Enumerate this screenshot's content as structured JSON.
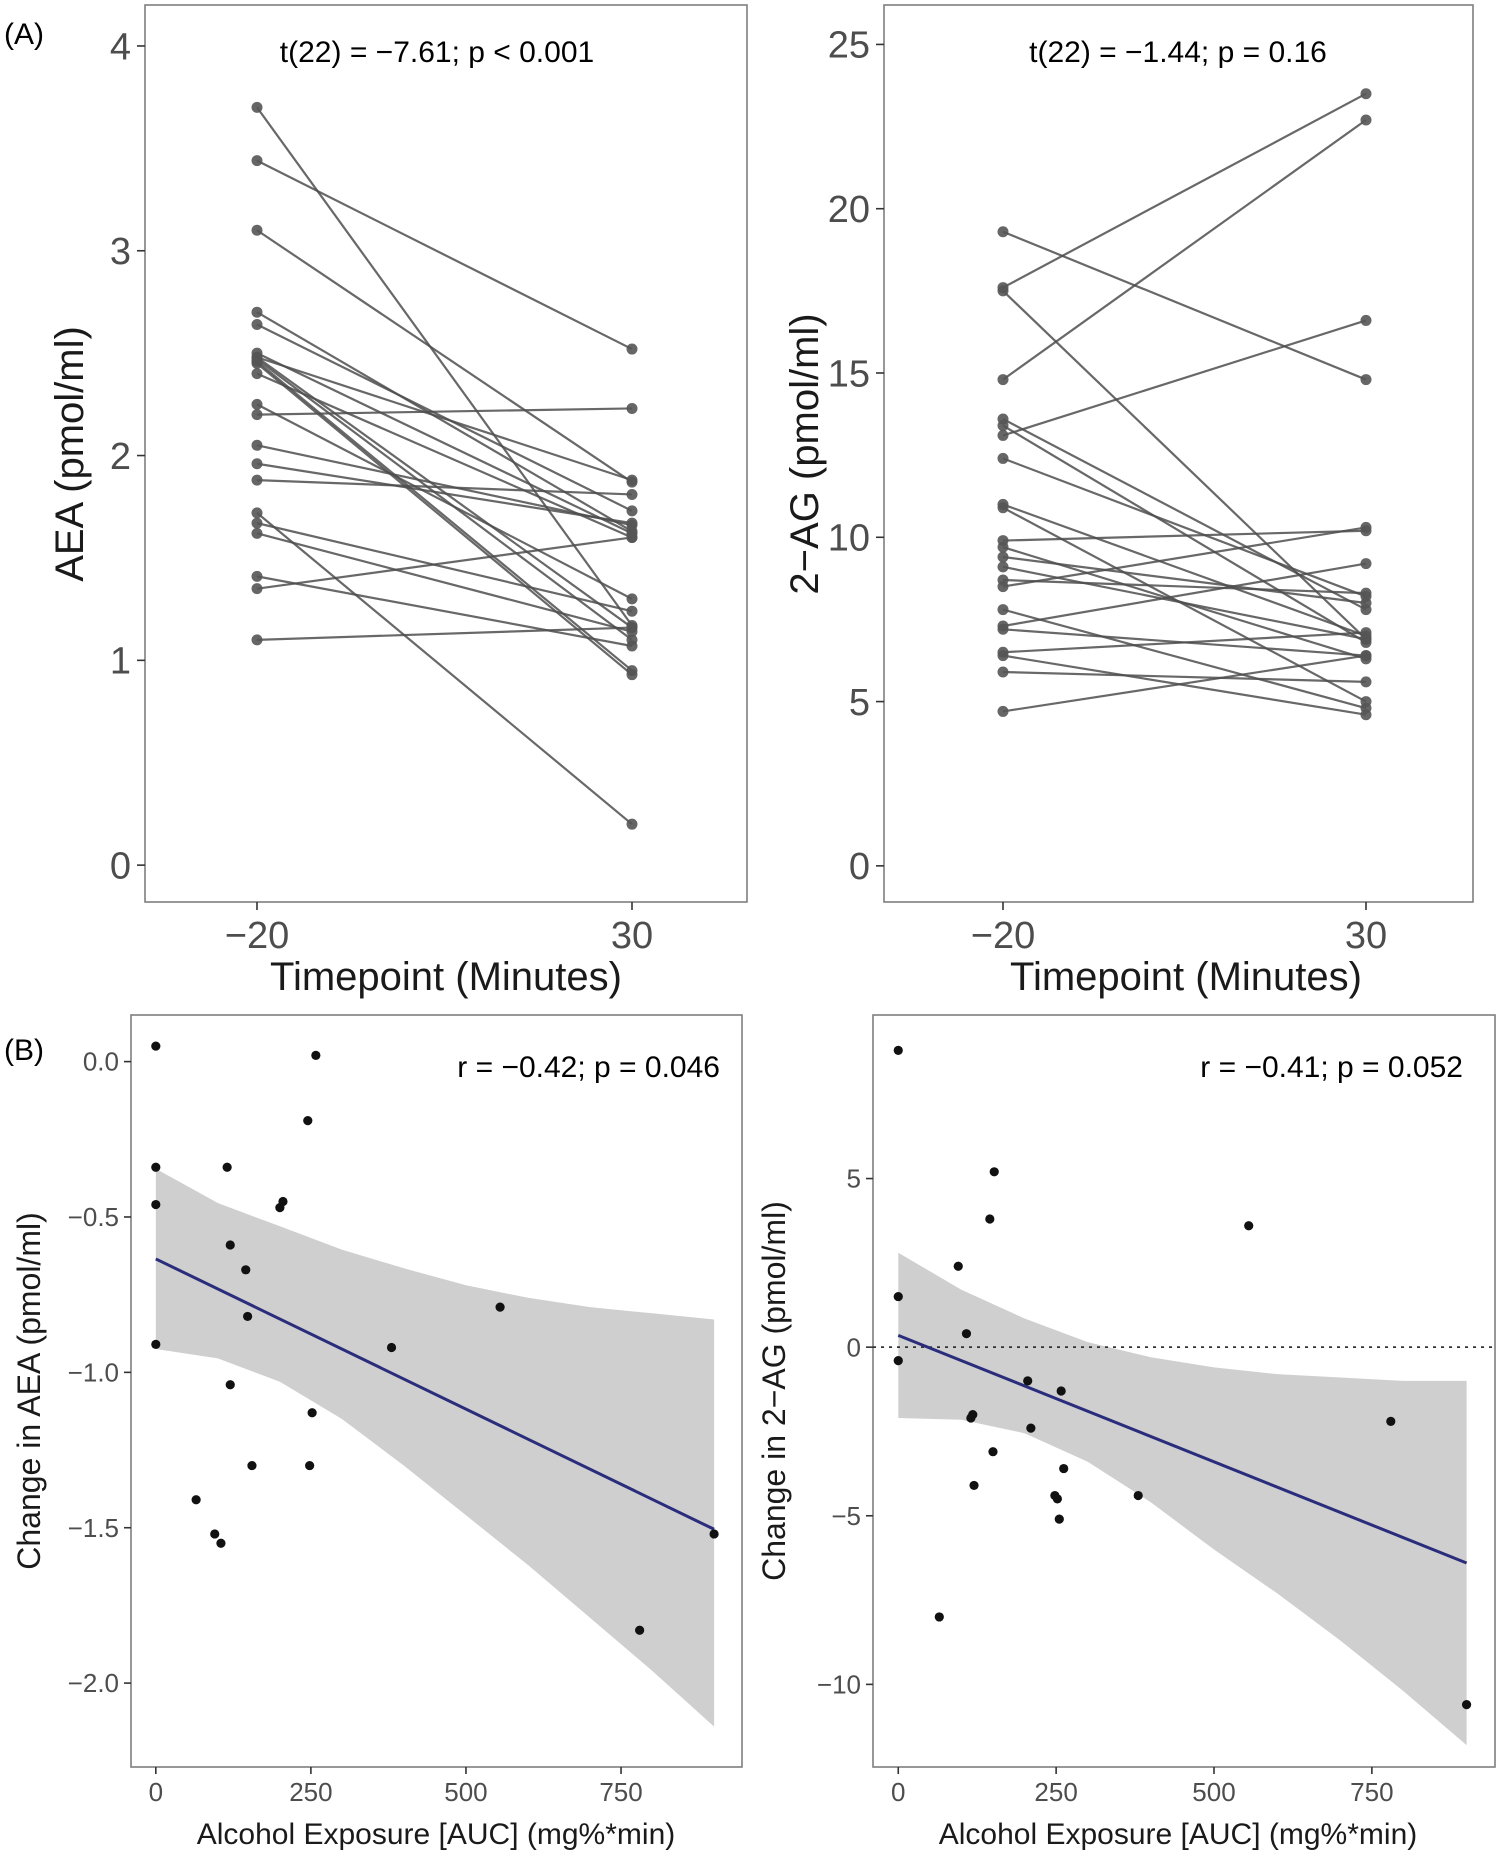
{
  "figure": {
    "label_a": "(A)",
    "label_b": "(B)"
  },
  "chart_data": [
    {
      "id": "aea_paired",
      "type": "line",
      "subtype": "paired-slopegraph",
      "title": "t(22) = −7.61; p < 0.001",
      "xlabel": "Timepoint (Minutes)",
      "ylabel": "AEA (pmol/ml)",
      "categories": [
        "−20",
        "30"
      ],
      "ylim": [
        -0.18,
        4.2
      ],
      "yticks": [
        0,
        1,
        2,
        3,
        4
      ],
      "ytick_labels": [
        "0",
        "1",
        "2",
        "3",
        "4"
      ],
      "grid": false,
      "pairs": [
        [
          3.7,
          1.17
        ],
        [
          3.44,
          2.52
        ],
        [
          3.1,
          1.87
        ],
        [
          2.7,
          1.63
        ],
        [
          2.64,
          1.73
        ],
        [
          2.5,
          1.62
        ],
        [
          2.48,
          1.16
        ],
        [
          2.47,
          1.1
        ],
        [
          2.46,
          0.95
        ],
        [
          2.45,
          0.93
        ],
        [
          2.4,
          1.6
        ],
        [
          2.25,
          1.3
        ],
        [
          2.2,
          2.23
        ],
        [
          2.05,
          1.66
        ],
        [
          1.96,
          1.67
        ],
        [
          1.88,
          1.81
        ],
        [
          1.72,
          0.2
        ],
        [
          1.67,
          1.24
        ],
        [
          1.62,
          1.14
        ],
        [
          1.41,
          1.07
        ],
        [
          1.35,
          1.6
        ],
        [
          1.1,
          1.16
        ],
        [
          2.48,
          1.88
        ]
      ]
    },
    {
      "id": "twoag_paired",
      "type": "line",
      "subtype": "paired-slopegraph",
      "title": "t(22) = −1.44; p = 0.16",
      "xlabel": "Timepoint (Minutes)",
      "ylabel": "2−AG (pmol/ml)",
      "categories": [
        "−20",
        "30"
      ],
      "ylim": [
        -1.1,
        26.2
      ],
      "yticks": [
        0,
        5,
        10,
        15,
        20,
        25
      ],
      "ytick_labels": [
        "0",
        "5",
        "10",
        "15",
        "20",
        "25"
      ],
      "grid": false,
      "pairs": [
        [
          19.3,
          14.8
        ],
        [
          17.6,
          23.5
        ],
        [
          17.5,
          6.9
        ],
        [
          14.8,
          22.7
        ],
        [
          13.6,
          7.8
        ],
        [
          13.4,
          6.8
        ],
        [
          13.1,
          16.6
        ],
        [
          12.4,
          8.2
        ],
        [
          11.0,
          7.0
        ],
        [
          10.9,
          5.0
        ],
        [
          9.9,
          10.2
        ],
        [
          9.7,
          6.3
        ],
        [
          9.4,
          8.0
        ],
        [
          9.1,
          6.9
        ],
        [
          8.7,
          8.3
        ],
        [
          8.5,
          10.3
        ],
        [
          7.8,
          4.8
        ],
        [
          7.3,
          9.2
        ],
        [
          7.2,
          6.4
        ],
        [
          6.5,
          7.1
        ],
        [
          6.4,
          4.6
        ],
        [
          5.9,
          5.6
        ],
        [
          4.7,
          6.4
        ]
      ]
    },
    {
      "id": "aea_scatter",
      "type": "scatter",
      "title": "r = −0.42; p = 0.046",
      "xlabel": "Alcohol Exposure [AUC] (mg%*min)",
      "ylabel": "Change in AEA (pmol/ml)",
      "xlim": [
        -40,
        945
      ],
      "ylim": [
        -2.27,
        0.15
      ],
      "xticks": [
        0,
        250,
        500,
        750
      ],
      "xtick_labels": [
        "0",
        "250",
        "500",
        "750"
      ],
      "yticks": [
        0.0,
        -0.5,
        -1.0,
        -1.5,
        -2.0
      ],
      "ytick_labels": [
        "0.0",
        "−0.5",
        "−1.0",
        "−1.5",
        "−2.0"
      ],
      "grid": false,
      "points": [
        [
          0,
          0.05
        ],
        [
          0,
          -0.34
        ],
        [
          0,
          -0.46
        ],
        [
          0,
          -0.91
        ],
        [
          65,
          -1.41
        ],
        [
          95,
          -1.52
        ],
        [
          105,
          -1.55
        ],
        [
          115,
          -0.34
        ],
        [
          120,
          -0.59
        ],
        [
          120,
          -1.04
        ],
        [
          145,
          -0.67
        ],
        [
          148,
          -0.82
        ],
        [
          155,
          -1.3
        ],
        [
          200,
          -0.47
        ],
        [
          205,
          -0.45
        ],
        [
          245,
          -0.19
        ],
        [
          248,
          -1.3
        ],
        [
          252,
          -1.13
        ],
        [
          258,
          0.02
        ],
        [
          380,
          -0.92
        ],
        [
          555,
          -0.79
        ],
        [
          780,
          -1.83
        ],
        [
          900,
          -1.52
        ]
      ],
      "fit": {
        "x": [
          0,
          900
        ],
        "y": [
          -0.635,
          -1.505
        ]
      },
      "ci_band": {
        "x": [
          0,
          100,
          200,
          300,
          400,
          500,
          600,
          700,
          800,
          900
        ],
        "lower": [
          -0.925,
          -0.955,
          -1.03,
          -1.15,
          -1.3,
          -1.46,
          -1.62,
          -1.79,
          -1.96,
          -2.14
        ],
        "upper": [
          -0.345,
          -0.455,
          -0.53,
          -0.605,
          -0.665,
          -0.72,
          -0.76,
          -0.79,
          -0.81,
          -0.83
        ]
      }
    },
    {
      "id": "twoag_scatter",
      "type": "scatter",
      "title": "r = −0.41; p = 0.052",
      "xlabel": "Alcohol Exposure [AUC] (mg%*min)",
      "ylabel": "Change in 2−AG (pmol/ml)",
      "xlim": [
        -40,
        945
      ],
      "ylim": [
        -12.45,
        9.85
      ],
      "xticks": [
        0,
        250,
        500,
        750
      ],
      "xtick_labels": [
        "0",
        "250",
        "500",
        "750"
      ],
      "yticks": [
        5,
        0,
        -5,
        -10
      ],
      "ytick_labels": [
        "5",
        "0",
        "−5",
        "−10"
      ],
      "reference_line_y": 0,
      "grid": false,
      "points": [
        [
          0,
          8.8
        ],
        [
          0,
          1.5
        ],
        [
          0,
          -0.4
        ],
        [
          65,
          -8.0
        ],
        [
          95,
          2.4
        ],
        [
          108,
          0.4
        ],
        [
          115,
          -2.1
        ],
        [
          118,
          -2.0
        ],
        [
          120,
          -4.1
        ],
        [
          145,
          3.8
        ],
        [
          150,
          -3.1
        ],
        [
          152,
          5.2
        ],
        [
          205,
          -1.0
        ],
        [
          210,
          -2.4
        ],
        [
          248,
          -4.4
        ],
        [
          252,
          -4.5
        ],
        [
          255,
          -5.1
        ],
        [
          258,
          -1.3
        ],
        [
          262,
          -3.6
        ],
        [
          380,
          -4.4
        ],
        [
          555,
          3.6
        ],
        [
          780,
          -2.2
        ],
        [
          900,
          -10.6
        ]
      ],
      "fit": {
        "x": [
          0,
          900
        ],
        "y": [
          0.35,
          -6.4
        ]
      },
      "ci_band": {
        "x": [
          0,
          100,
          200,
          300,
          400,
          500,
          600,
          700,
          800,
          900
        ],
        "lower": [
          -2.1,
          -2.15,
          -2.55,
          -3.4,
          -4.6,
          -6.0,
          -7.3,
          -8.7,
          -10.2,
          -11.8
        ],
        "upper": [
          2.8,
          1.7,
          0.85,
          0.15,
          -0.3,
          -0.6,
          -0.8,
          -0.9,
          -1.0,
          -1.0
        ]
      }
    }
  ]
}
